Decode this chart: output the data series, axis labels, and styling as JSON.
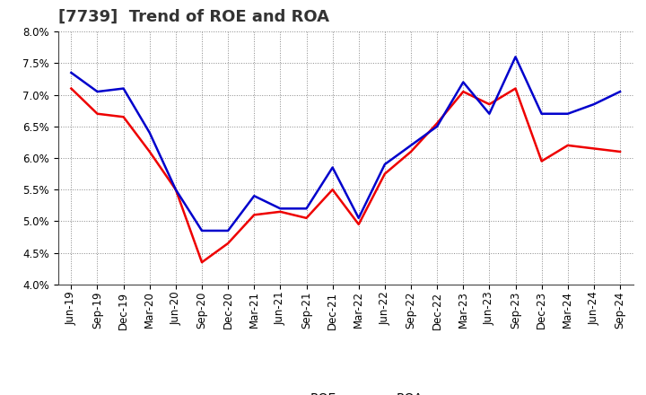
{
  "title": "[7739]  Trend of ROE and ROA",
  "labels": [
    "Jun-19",
    "Sep-19",
    "Dec-19",
    "Mar-20",
    "Jun-20",
    "Sep-20",
    "Dec-20",
    "Mar-21",
    "Jun-21",
    "Sep-21",
    "Dec-21",
    "Mar-22",
    "Jun-22",
    "Sep-22",
    "Dec-22",
    "Mar-23",
    "Jun-23",
    "Sep-23",
    "Dec-23",
    "Mar-24",
    "Jun-24",
    "Sep-24"
  ],
  "ROE": [
    7.1,
    6.7,
    6.65,
    6.1,
    5.5,
    4.35,
    4.65,
    5.1,
    5.15,
    5.05,
    5.5,
    4.95,
    5.75,
    6.1,
    6.55,
    7.05,
    6.85,
    7.1,
    5.95,
    6.2,
    6.15,
    6.1
  ],
  "ROA": [
    7.35,
    7.05,
    7.1,
    6.4,
    5.5,
    4.85,
    4.85,
    5.4,
    5.2,
    5.2,
    5.85,
    5.05,
    5.9,
    6.2,
    6.5,
    7.2,
    6.7,
    7.6,
    6.7,
    6.7,
    6.85,
    7.05
  ],
  "roe_color": "#ee0000",
  "roa_color": "#0000cc",
  "ylim": [
    4.0,
    8.0
  ],
  "yticks": [
    4.0,
    4.5,
    5.0,
    5.5,
    6.0,
    6.5,
    7.0,
    7.5,
    8.0
  ],
  "background_color": "#ffffff",
  "plot_bg_color": "#ffffff",
  "grid_color": "#888888",
  "title_fontsize": 13,
  "axis_fontsize": 8.5,
  "legend_fontsize": 10,
  "line_width": 1.8
}
